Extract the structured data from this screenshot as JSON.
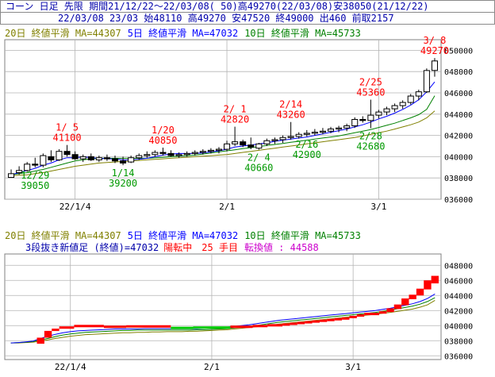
{
  "header": {
    "line1": "コーン 日足 先限 期間21/12/22～22/03/08( 50)高49270(22/03/08)安38050(21/12/22)",
    "line2": "22/03/08 23/03 始48110 高49270 安47520 終49000 出460 前取2157"
  },
  "legend_top": {
    "ma20": "20日 終値平滑 MA=44307",
    "ma5": "5日 終値平滑 MA=47032",
    "ma10": "10日 終値平滑 MA=45733"
  },
  "legend_bottom": {
    "ma20": "20日 終値平滑 MA=44307",
    "ma5": "5日 終値平滑 MA=47032",
    "ma10": "10日 終値平滑 MA=45733"
  },
  "threeline": {
    "label": "3段抜き新値足 (終値)=47032",
    "status": "陽転中",
    "count": "25 手目",
    "reversal": "転換値 : 44588"
  },
  "colors": {
    "up": "#ff0000",
    "down": "#00cc00",
    "ma20": "#808000",
    "ma5": "#0000ff",
    "ma10": "#008000",
    "grid": "#b4b4b4"
  },
  "chart_data": [
    {
      "type": "candlestick",
      "ylim": [
        36000,
        51000
      ],
      "yticks": [
        36000,
        38000,
        40000,
        42000,
        44000,
        46000,
        48000,
        50000
      ],
      "xticks": [
        {
          "label": "22/1/4",
          "i": 8
        },
        {
          "label": "2/1",
          "i": 27
        },
        {
          "label": "3/1",
          "i": 46
        }
      ],
      "bars": [
        [
          38050,
          38800,
          38050,
          38400
        ],
        [
          38500,
          39100,
          38300,
          38700
        ],
        [
          38700,
          39500,
          38600,
          39300
        ],
        [
          39300,
          39900,
          39000,
          39200
        ],
        [
          39200,
          40300,
          39000,
          40100
        ],
        [
          40000,
          40600,
          39500,
          39700
        ],
        [
          39700,
          40700,
          39600,
          40500
        ],
        [
          40500,
          41100,
          40000,
          40200
        ],
        [
          40200,
          40500,
          39700,
          39800
        ],
        [
          39800,
          40200,
          39500,
          40000
        ],
        [
          40000,
          40300,
          39600,
          39700
        ],
        [
          39700,
          40100,
          39500,
          39900
        ],
        [
          39900,
          40200,
          39600,
          39800
        ],
        [
          39800,
          40100,
          39400,
          39600
        ],
        [
          39600,
          40000,
          39200,
          39400
        ],
        [
          39500,
          40100,
          39400,
          39900
        ],
        [
          39900,
          40300,
          39700,
          40100
        ],
        [
          40100,
          40500,
          39900,
          40200
        ],
        [
          40200,
          40600,
          40000,
          40400
        ],
        [
          40400,
          40850,
          40100,
          40300
        ],
        [
          40300,
          40600,
          40000,
          40100
        ],
        [
          40100,
          40400,
          39900,
          40200
        ],
        [
          40200,
          40500,
          40000,
          40300
        ],
        [
          40300,
          40600,
          40100,
          40400
        ],
        [
          40400,
          40700,
          40200,
          40500
        ],
        [
          40500,
          40800,
          40300,
          40600
        ],
        [
          40600,
          40900,
          40300,
          40700
        ],
        [
          40700,
          41500,
          40500,
          41200
        ],
        [
          41200,
          42820,
          41000,
          41400
        ],
        [
          41400,
          41600,
          40900,
          41100
        ],
        [
          41100,
          41800,
          40700,
          40900
        ],
        [
          40800,
          41300,
          40660,
          41200
        ],
        [
          41200,
          41700,
          41000,
          41500
        ],
        [
          41500,
          41800,
          41200,
          41600
        ],
        [
          41600,
          42000,
          41300,
          41800
        ],
        [
          41800,
          43260,
          41600,
          41900
        ],
        [
          41900,
          42300,
          41700,
          42100
        ],
        [
          42100,
          42500,
          41900,
          42200
        ],
        [
          42200,
          42600,
          42000,
          42300
        ],
        [
          42300,
          42700,
          42100,
          42400
        ],
        [
          42400,
          42800,
          42200,
          42600
        ],
        [
          42600,
          42900,
          42300,
          42700
        ],
        [
          42700,
          43100,
          42400,
          42900
        ],
        [
          42900,
          43700,
          42700,
          43500
        ],
        [
          43500,
          43800,
          43200,
          43400
        ],
        [
          43400,
          45360,
          42680,
          43900
        ],
        [
          43900,
          44400,
          43600,
          44200
        ],
        [
          44200,
          44700,
          43900,
          44500
        ],
        [
          44500,
          45000,
          44200,
          44800
        ],
        [
          44800,
          45300,
          44500,
          45100
        ],
        [
          45100,
          45900,
          44900,
          45700
        ],
        [
          45700,
          46300,
          45300,
          46100
        ],
        [
          46100,
          48300,
          46000,
          48100
        ],
        [
          48110,
          49270,
          47520,
          49000
        ]
      ],
      "ma5": [
        38300,
        38500,
        38700,
        38900,
        39200,
        39400,
        39700,
        39900,
        39900,
        40000,
        39900,
        39850,
        39800,
        39800,
        39700,
        39700,
        39750,
        39850,
        40000,
        40150,
        40250,
        40300,
        40300,
        40300,
        40350,
        40450,
        40550,
        40700,
        40900,
        41000,
        41100,
        41200,
        41300,
        41450,
        41550,
        41650,
        41750,
        41850,
        42000,
        42150,
        42300,
        42450,
        42600,
        42800,
        43000,
        43250,
        43550,
        43800,
        44100,
        44450,
        44850,
        45350,
        46100,
        47032
      ],
      "ma10": [
        38300,
        38400,
        38500,
        38650,
        38800,
        39000,
        39200,
        39400,
        39600,
        39700,
        39800,
        39850,
        39850,
        39850,
        39850,
        39850,
        39850,
        39850,
        39900,
        39950,
        40000,
        40050,
        40100,
        40150,
        40250,
        40350,
        40450,
        40550,
        40650,
        40750,
        40850,
        40950,
        41050,
        41150,
        41250,
        41350,
        41450,
        41550,
        41650,
        41750,
        41850,
        41950,
        42100,
        42250,
        42400,
        42550,
        42750,
        42950,
        43150,
        43400,
        43650,
        43950,
        44450,
        45733
      ],
      "ma20": [
        38200,
        38250,
        38300,
        38400,
        38500,
        38650,
        38800,
        38950,
        39100,
        39200,
        39300,
        39400,
        39450,
        39500,
        39550,
        39600,
        39650,
        39700,
        39750,
        39800,
        39850,
        39900,
        39950,
        40000,
        40050,
        40100,
        40150,
        40200,
        40300,
        40400,
        40500,
        40600,
        40700,
        40800,
        40900,
        41000,
        41100,
        41200,
        41300,
        41400,
        41500,
        41600,
        41700,
        41800,
        41950,
        42100,
        42250,
        42400,
        42600,
        42800,
        43000,
        43250,
        43650,
        44307
      ],
      "annotations": [
        {
          "date": "12/29",
          "value": "39050",
          "i": 3,
          "pos": "below"
        },
        {
          "date": "1/ 5",
          "value": "41100",
          "i": 7,
          "pos": "above"
        },
        {
          "date": "1/14",
          "value": "39200",
          "i": 14,
          "pos": "below"
        },
        {
          "date": "1/20",
          "value": "40850",
          "i": 19,
          "pos": "above"
        },
        {
          "date": "2/ 1",
          "value": "42820",
          "i": 28,
          "pos": "above"
        },
        {
          "date": "2/ 4",
          "value": "40660",
          "i": 31,
          "pos": "below"
        },
        {
          "date": "2/14",
          "value": "43260",
          "i": 35,
          "pos": "above"
        },
        {
          "date": "2/16",
          "value": "42900",
          "i": 37,
          "pos": "below"
        },
        {
          "date": "2/25",
          "value": "45360",
          "i": 45,
          "pos": "above"
        },
        {
          "date": "2/28",
          "value": "42680",
          "i": 45,
          "pos": "below"
        },
        {
          "date": "3/ 8",
          "value": "49270",
          "i": 53,
          "pos": "above"
        }
      ]
    },
    {
      "type": "three-line-break",
      "ylim": [
        35500,
        49500
      ],
      "yticks": [
        36000,
        38000,
        40000,
        42000,
        44000,
        46000,
        48000
      ],
      "xticks": [
        {
          "label": "22/1/4",
          "i": 8
        },
        {
          "label": "2/1",
          "i": 27
        },
        {
          "label": "3/1",
          "i": 46
        }
      ],
      "blocks": [
        {
          "from": 4,
          "to": 5,
          "lo": 37600,
          "hi": 38400,
          "c": "up"
        },
        {
          "from": 5,
          "to": 6,
          "lo": 38400,
          "hi": 39300,
          "c": "up"
        },
        {
          "from": 6,
          "to": 7,
          "lo": 39300,
          "hi": 39600,
          "c": "up"
        },
        {
          "from": 7,
          "to": 9,
          "lo": 39600,
          "hi": 39900,
          "c": "up"
        },
        {
          "from": 9,
          "to": 13,
          "lo": 39900,
          "hi": 40100,
          "c": "up"
        },
        {
          "from": 13,
          "to": 16,
          "lo": 39900,
          "hi": 40000,
          "c": "up"
        },
        {
          "from": 16,
          "to": 22,
          "lo": 39850,
          "hi": 40050,
          "c": "up"
        },
        {
          "from": 22,
          "to": 25,
          "lo": 39650,
          "hi": 39850,
          "c": "down"
        },
        {
          "from": 25,
          "to": 30,
          "lo": 39700,
          "hi": 39900,
          "c": "down"
        },
        {
          "from": 30,
          "to": 33,
          "lo": 39800,
          "hi": 40000,
          "c": "up"
        },
        {
          "from": 33,
          "to": 35,
          "lo": 39900,
          "hi": 40100,
          "c": "up"
        },
        {
          "from": 35,
          "to": 37,
          "lo": 40000,
          "hi": 40200,
          "c": "up"
        },
        {
          "from": 37,
          "to": 38,
          "lo": 40100,
          "hi": 40300,
          "c": "up"
        },
        {
          "from": 38,
          "to": 39,
          "lo": 40200,
          "hi": 40400,
          "c": "up"
        },
        {
          "from": 39,
          "to": 40,
          "lo": 40300,
          "hi": 40500,
          "c": "up"
        },
        {
          "from": 40,
          "to": 41,
          "lo": 40400,
          "hi": 40600,
          "c": "up"
        },
        {
          "from": 41,
          "to": 42,
          "lo": 40500,
          "hi": 40700,
          "c": "up"
        },
        {
          "from": 42,
          "to": 43,
          "lo": 40600,
          "hi": 40800,
          "c": "up"
        },
        {
          "from": 43,
          "to": 44,
          "lo": 40700,
          "hi": 40900,
          "c": "up"
        },
        {
          "from": 44,
          "to": 45,
          "lo": 40800,
          "hi": 41000,
          "c": "up"
        },
        {
          "from": 45,
          "to": 46,
          "lo": 40900,
          "hi": 41100,
          "c": "up"
        },
        {
          "from": 46,
          "to": 47,
          "lo": 41000,
          "hi": 41300,
          "c": "up"
        },
        {
          "from": 47,
          "to": 48,
          "lo": 41200,
          "hi": 41500,
          "c": "up"
        },
        {
          "from": 48,
          "to": 50,
          "lo": 41400,
          "hi": 41700,
          "c": "up"
        },
        {
          "from": 50,
          "to": 51,
          "lo": 41600,
          "hi": 41900,
          "c": "up"
        },
        {
          "from": 51,
          "to": 52,
          "lo": 41800,
          "hi": 42300,
          "c": "up"
        },
        {
          "from": 52,
          "to": 53,
          "lo": 42200,
          "hi": 42800,
          "c": "up"
        },
        {
          "from": 53,
          "to": 54,
          "lo": 42700,
          "hi": 43600,
          "c": "up"
        },
        {
          "from": 54,
          "to": 55,
          "lo": 43500,
          "hi": 44100,
          "c": "up"
        },
        {
          "from": 55,
          "to": 56,
          "lo": 44000,
          "hi": 44900,
          "c": "up"
        },
        {
          "from": 56,
          "to": 57,
          "lo": 44800,
          "hi": 46000,
          "c": "up"
        },
        {
          "from": 57,
          "to": 58,
          "lo": 45600,
          "hi": 46600,
          "c": "up"
        }
      ],
      "ma5": [
        37700,
        37750,
        37850,
        37950,
        38300,
        38600,
        38850,
        39050,
        39200,
        39300,
        39350,
        39400,
        39450,
        39500,
        39550,
        39550,
        39550,
        39550,
        39600,
        39600,
        39600,
        39600,
        39600,
        39600,
        39600,
        39600,
        39650,
        39700,
        39750,
        39800,
        39900,
        40000,
        40100,
        40250,
        40400,
        40550,
        40700,
        40800,
        40900,
        41000,
        41100,
        41200,
        41300,
        41400,
        41500,
        41600,
        41700,
        41800,
        41900,
        42000,
        42150,
        42300,
        42500,
        42700,
        42900,
        43200,
        43600,
        44200
      ],
      "ma10": [
        37700,
        37750,
        37800,
        37900,
        38100,
        38300,
        38550,
        38750,
        38900,
        39000,
        39100,
        39150,
        39200,
        39250,
        39300,
        39350,
        39350,
        39400,
        39400,
        39400,
        39400,
        39400,
        39400,
        39400,
        39400,
        39450,
        39450,
        39500,
        39550,
        39600,
        39700,
        39800,
        39900,
        40000,
        40150,
        40300,
        40450,
        40550,
        40650,
        40750,
        40850,
        40950,
        41050,
        41150,
        41250,
        41350,
        41450,
        41550,
        41650,
        41750,
        41900,
        42050,
        42250,
        42400,
        42600,
        42850,
        43200,
        43700
      ],
      "ma20": [
        37700,
        37700,
        37750,
        37800,
        37950,
        38100,
        38300,
        38450,
        38600,
        38700,
        38800,
        38850,
        38900,
        38950,
        39000,
        39050,
        39050,
        39100,
        39100,
        39150,
        39150,
        39200,
        39200,
        39200,
        39250,
        39250,
        39300,
        39350,
        39400,
        39450,
        39550,
        39650,
        39750,
        39850,
        39950,
        40050,
        40200,
        40300,
        40400,
        40500,
        40600,
        40700,
        40800,
        40900,
        41000,
        41100,
        41200,
        41300,
        41400,
        41500,
        41650,
        41750,
        41900,
        42050,
        42200,
        42450,
        42750,
        43350
      ]
    }
  ]
}
